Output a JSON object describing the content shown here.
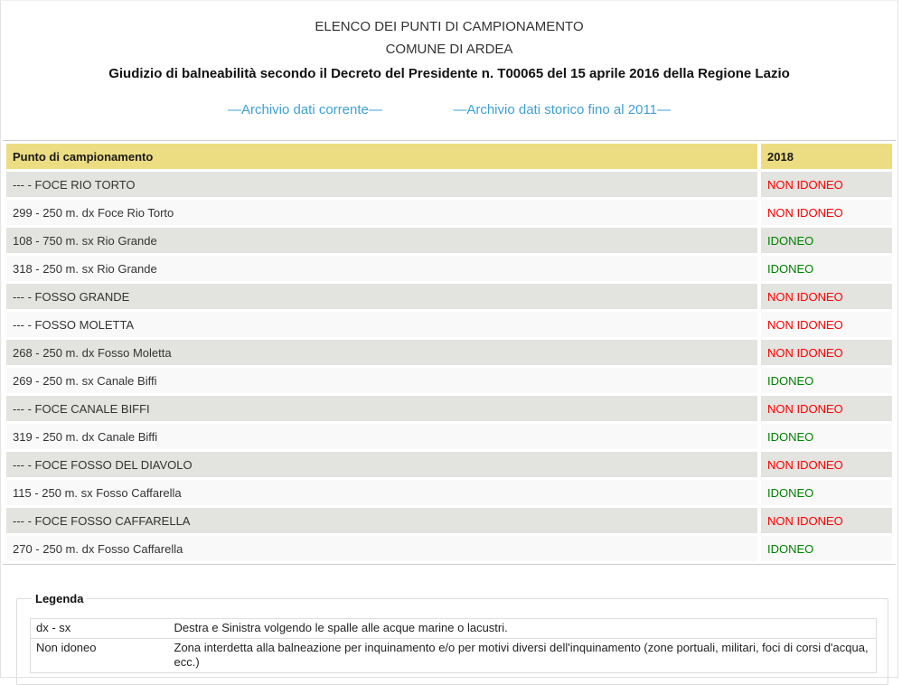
{
  "page": {
    "title_line1": "ELENCO DEI PUNTI DI CAMPIONAMENTO",
    "title_line2": "COMUNE DI ARDEA",
    "decree": "Giudizio di balneabilità secondo il Decreto del Presidente n. T00065 del 15 aprile 2016 della Regione Lazio"
  },
  "links": {
    "current": "—Archivio dati corrente—",
    "historic": "—Archivio dati storico fino al 2011—"
  },
  "table": {
    "columns": [
      "Punto di campionamento",
      "2018"
    ],
    "rows": [
      {
        "point": "--- - FOCE RIO TORTO",
        "status": "NON IDONEO"
      },
      {
        "point": "299 - 250 m. dx Foce Rio Torto",
        "status": "NON IDONEO"
      },
      {
        "point": "108 - 750 m. sx Rio Grande",
        "status": "IDONEO"
      },
      {
        "point": "318 - 250 m. sx Rio Grande",
        "status": "IDONEO"
      },
      {
        "point": "--- - FOSSO GRANDE",
        "status": "NON IDONEO"
      },
      {
        "point": "--- - FOSSO MOLETTA",
        "status": "NON IDONEO"
      },
      {
        "point": "268 - 250 m. dx Fosso Moletta",
        "status": "NON IDONEO"
      },
      {
        "point": "269 - 250 m. sx Canale Biffi",
        "status": "IDONEO"
      },
      {
        "point": "--- - FOCE CANALE BIFFI",
        "status": "NON IDONEO"
      },
      {
        "point": "319 - 250 m. dx Canale Biffi",
        "status": "IDONEO"
      },
      {
        "point": "--- - FOCE FOSSO DEL DIAVOLO",
        "status": "NON IDONEO"
      },
      {
        "point": "115 - 250 m. sx Fosso Caffarella",
        "status": "IDONEO"
      },
      {
        "point": "--- - FOCE FOSSO CAFFARELLA",
        "status": "NON IDONEO"
      },
      {
        "point": "270 - 250 m. dx Fosso Caffarella",
        "status": "IDONEO"
      }
    ]
  },
  "legend": {
    "title": "Legenda",
    "entries": [
      {
        "term": "dx - sx",
        "description": "Destra e Sinistra volgendo le spalle alle acque marine o lacustri."
      },
      {
        "term": "Non idoneo",
        "description": "Zona interdetta alla balneazione per inquinamento e/o per motivi diversi dell'inquinamento (zone portuali, militari, foci di corsi d'acqua, ecc.)"
      }
    ]
  },
  "colors": {
    "header_bg": "#ecdd82",
    "row_alt_bg": "#e3e3df",
    "row_bg": "#f9f9f9",
    "status_ok": "#008000",
    "status_bad": "#ff0000",
    "link": "#3fa1d5"
  }
}
